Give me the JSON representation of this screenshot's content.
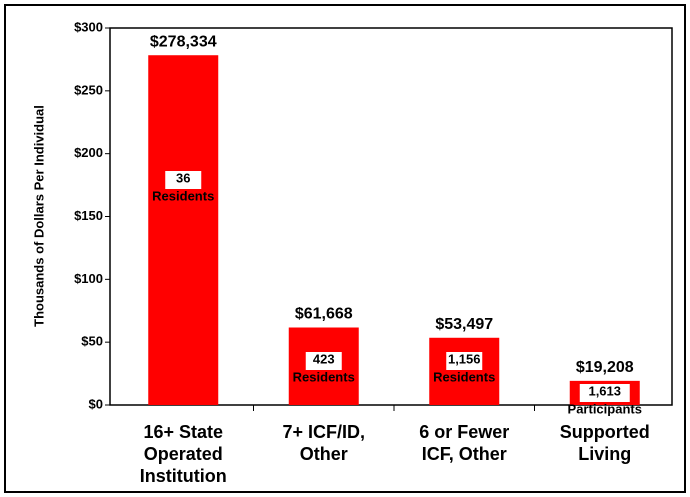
{
  "chart_data": {
    "type": "bar",
    "y_label": "Thousands of Dollars Per Individual",
    "categories": [
      [
        "16+ State",
        "Operated",
        "Institution"
      ],
      [
        "7+ ICF/ID,",
        "Other"
      ],
      [
        "6 or Fewer",
        "ICF, Other"
      ],
      [
        "Supported",
        "Living"
      ]
    ],
    "values": [
      278.334,
      61.668,
      53.497,
      19.208
    ],
    "value_labels": [
      "$278,334",
      "$61,668",
      "$53,497",
      "$19,208"
    ],
    "bar_notes": [
      [
        "36",
        "Residents"
      ],
      [
        "423",
        "Residents"
      ],
      [
        "1,156",
        "Residents"
      ],
      [
        "1,613",
        "Participants"
      ]
    ],
    "color": "#ff0000",
    "ylim": [
      0,
      300
    ],
    "yticks": [
      {
        "value": 0,
        "label": "$0"
      },
      {
        "value": 50,
        "label": "$50"
      },
      {
        "value": 100,
        "label": "$100"
      },
      {
        "value": 150,
        "label": "$150"
      },
      {
        "value": 200,
        "label": "$200"
      },
      {
        "value": 250,
        "label": "$250"
      },
      {
        "value": 300,
        "label": "$300"
      }
    ],
    "grid": false
  }
}
